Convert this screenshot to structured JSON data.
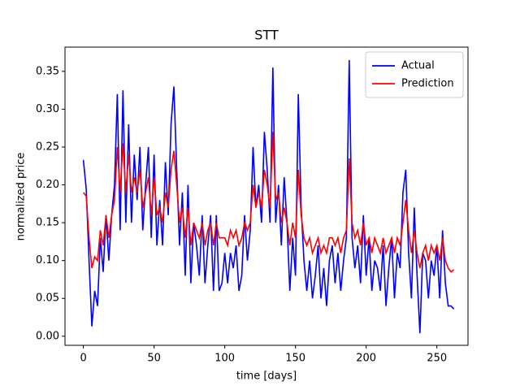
{
  "chart_data": {
    "type": "line",
    "title": "STT",
    "xlabel": "time [days]",
    "ylabel": "normalized price",
    "x": [
      0,
      2,
      4,
      6,
      8,
      10,
      12,
      14,
      16,
      18,
      20,
      22,
      24,
      26,
      28,
      30,
      32,
      34,
      36,
      38,
      40,
      42,
      44,
      46,
      48,
      50,
      52,
      54,
      56,
      58,
      60,
      62,
      64,
      66,
      68,
      70,
      72,
      74,
      76,
      78,
      80,
      82,
      84,
      86,
      88,
      90,
      92,
      94,
      96,
      98,
      100,
      102,
      104,
      106,
      108,
      110,
      112,
      114,
      116,
      118,
      120,
      122,
      124,
      126,
      128,
      130,
      132,
      134,
      136,
      138,
      140,
      142,
      144,
      146,
      148,
      150,
      152,
      154,
      156,
      158,
      160,
      162,
      164,
      166,
      168,
      170,
      172,
      174,
      176,
      178,
      180,
      182,
      184,
      186,
      188,
      190,
      192,
      194,
      196,
      198,
      200,
      202,
      204,
      206,
      208,
      210,
      212,
      214,
      216,
      218,
      220,
      222,
      224,
      226,
      228,
      230,
      232,
      234,
      236,
      238,
      240,
      242,
      244,
      246,
      248,
      250,
      252,
      254,
      256,
      258,
      260,
      262
    ],
    "series": [
      {
        "name": "Actual",
        "color": "#0000ff",
        "values": [
          0.233,
          0.195,
          0.1,
          0.013,
          0.06,
          0.04,
          0.13,
          0.085,
          0.16,
          0.1,
          0.16,
          0.2,
          0.32,
          0.14,
          0.325,
          0.15,
          0.28,
          0.15,
          0.24,
          0.18,
          0.25,
          0.14,
          0.2,
          0.25,
          0.13,
          0.24,
          0.12,
          0.18,
          0.12,
          0.23,
          0.16,
          0.28,
          0.33,
          0.22,
          0.12,
          0.19,
          0.08,
          0.2,
          0.07,
          0.15,
          0.12,
          0.08,
          0.16,
          0.07,
          0.12,
          0.16,
          0.06,
          0.16,
          0.06,
          0.07,
          0.11,
          0.07,
          0.11,
          0.09,
          0.12,
          0.06,
          0.08,
          0.16,
          0.1,
          0.14,
          0.25,
          0.17,
          0.2,
          0.15,
          0.27,
          0.22,
          0.15,
          0.355,
          0.15,
          0.2,
          0.12,
          0.21,
          0.15,
          0.06,
          0.13,
          0.08,
          0.32,
          0.17,
          0.1,
          0.06,
          0.1,
          0.05,
          0.08,
          0.12,
          0.05,
          0.09,
          0.04,
          0.1,
          0.12,
          0.07,
          0.11,
          0.06,
          0.1,
          0.13,
          0.365,
          0.13,
          0.09,
          0.12,
          0.07,
          0.16,
          0.08,
          0.13,
          0.06,
          0.1,
          0.09,
          0.06,
          0.12,
          0.04,
          0.09,
          0.13,
          0.05,
          0.11,
          0.09,
          0.19,
          0.22,
          0.11,
          0.05,
          0.17,
          0.08,
          0.004,
          0.11,
          0.1,
          0.05,
          0.1,
          0.08,
          0.12,
          0.05,
          0.14,
          0.07,
          0.04,
          0.04,
          0.036
        ]
      },
      {
        "name": "Prediction",
        "color": "#ff0000",
        "values": [
          0.19,
          0.185,
          0.13,
          0.09,
          0.105,
          0.1,
          0.14,
          0.12,
          0.16,
          0.13,
          0.16,
          0.18,
          0.25,
          0.19,
          0.255,
          0.19,
          0.24,
          0.19,
          0.21,
          0.19,
          0.22,
          0.17,
          0.19,
          0.21,
          0.16,
          0.21,
          0.16,
          0.17,
          0.15,
          0.19,
          0.17,
          0.22,
          0.245,
          0.2,
          0.15,
          0.17,
          0.13,
          0.17,
          0.12,
          0.15,
          0.14,
          0.13,
          0.15,
          0.12,
          0.14,
          0.15,
          0.12,
          0.15,
          0.13,
          0.13,
          0.13,
          0.12,
          0.14,
          0.13,
          0.14,
          0.12,
          0.13,
          0.15,
          0.14,
          0.15,
          0.2,
          0.17,
          0.19,
          0.17,
          0.22,
          0.2,
          0.17,
          0.27,
          0.18,
          0.19,
          0.15,
          0.17,
          0.15,
          0.12,
          0.15,
          0.13,
          0.22,
          0.16,
          0.13,
          0.12,
          0.13,
          0.11,
          0.12,
          0.13,
          0.11,
          0.12,
          0.11,
          0.13,
          0.13,
          0.12,
          0.13,
          0.11,
          0.13,
          0.14,
          0.235,
          0.15,
          0.13,
          0.14,
          0.12,
          0.15,
          0.12,
          0.13,
          0.11,
          0.13,
          0.12,
          0.11,
          0.13,
          0.11,
          0.12,
          0.13,
          0.11,
          0.13,
          0.12,
          0.15,
          0.18,
          0.14,
          0.11,
          0.14,
          0.11,
          0.09,
          0.11,
          0.12,
          0.1,
          0.12,
          0.11,
          0.12,
          0.1,
          0.13,
          0.1,
          0.09,
          0.085,
          0.088
        ]
      }
    ],
    "xlim": [
      -13,
      272
    ],
    "ylim": [
      -0.012,
      0.382
    ],
    "xticks": [
      0,
      50,
      100,
      150,
      200,
      250
    ],
    "yticks": [
      {
        "value": 0,
        "label": "0.00"
      },
      0.05,
      {
        "value": 0.1,
        "label": "0.10"
      },
      0.15,
      {
        "value": 0.2,
        "label": "0.20"
      },
      0.25,
      {
        "value": 0.3,
        "label": "0.30"
      },
      0.35
    ],
    "legend": "upper right"
  }
}
